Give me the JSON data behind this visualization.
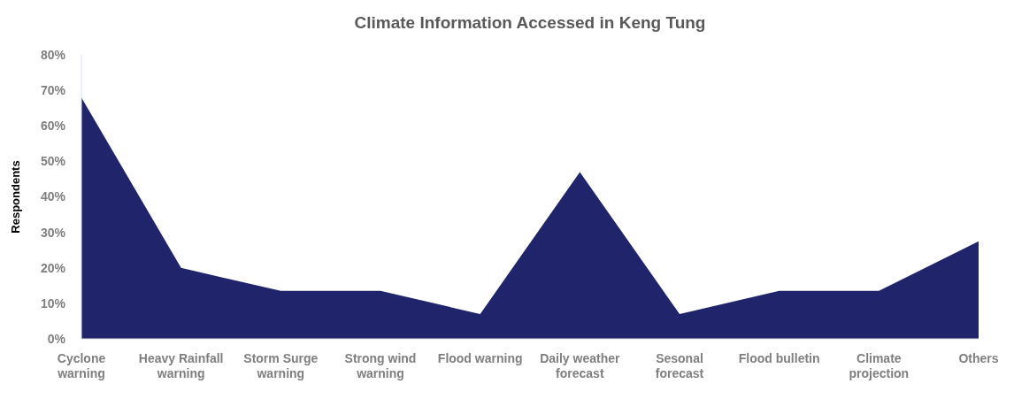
{
  "chart_data": {
    "type": "area",
    "title": "Climate Information Accessed in Keng Tung",
    "ylabel": "Respondents",
    "categories": [
      "Cyclone warning",
      "Heavy Rainfall warning",
      "Storm Surge warning",
      "Strong wind warning",
      "Flood warning",
      "Daily weather forecast",
      "Sesonal forecast",
      "Flood bulletin",
      "Climate projection",
      "Others"
    ],
    "series": [
      {
        "color": "#20256b",
        "values": [
          68,
          20,
          13.5,
          13.5,
          7,
          47,
          7,
          13.5,
          13.5,
          27.5
        ]
      }
    ],
    "ylim": [
      0,
      80
    ],
    "yticks": [
      {
        "value": 0,
        "label": "0%"
      },
      {
        "value": 10,
        "label": "10%"
      },
      {
        "value": 20,
        "label": "20%"
      },
      {
        "value": 30,
        "label": "30%"
      },
      {
        "value": 40,
        "label": "40%"
      },
      {
        "value": 50,
        "label": "50%"
      },
      {
        "value": 60,
        "label": "60%"
      },
      {
        "value": 70,
        "label": "70%"
      },
      {
        "value": 80,
        "label": "80%"
      }
    ],
    "grid": false
  }
}
